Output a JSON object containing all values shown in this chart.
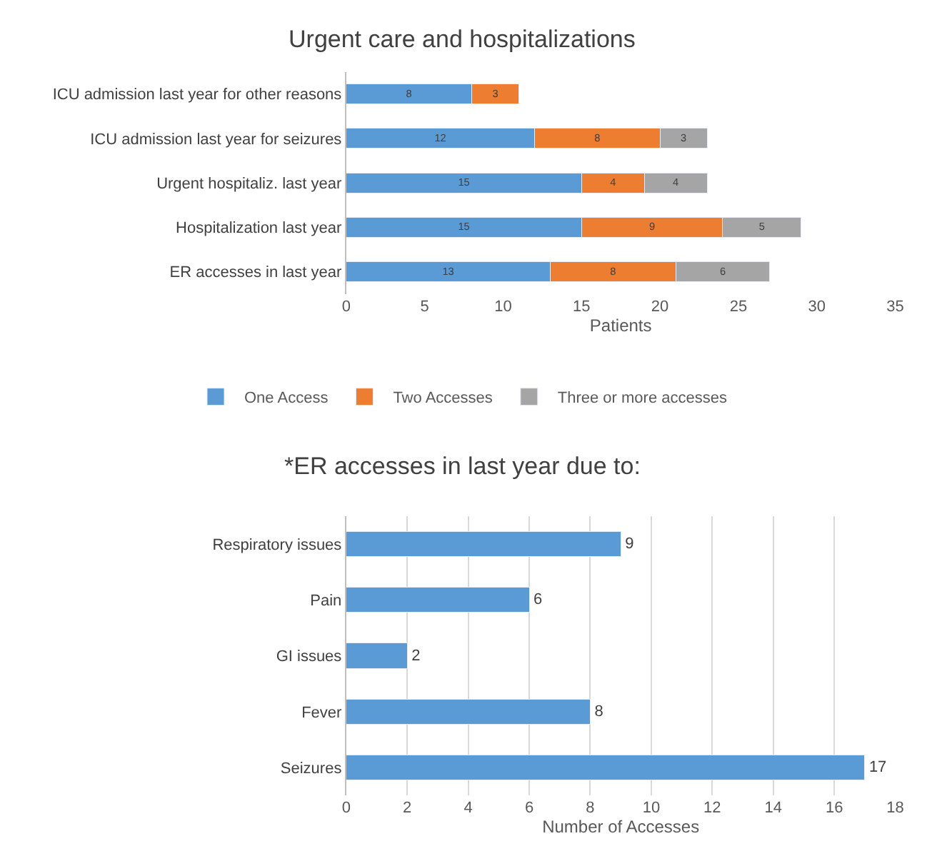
{
  "chart_data": [
    {
      "type": "bar",
      "title": "Urgent care and hospitalizations",
      "orientation": "horizontal",
      "stacked": true,
      "xlabel": "Patients",
      "categories": [
        "ICU admission last year for other reasons",
        "ICU admission last year for seizures",
        "Urgent hospitaliz. last year",
        "Hospitalization last year",
        "ER accesses in last year"
      ],
      "series": [
        {
          "name": "One Access",
          "color": "#5b9bd5",
          "values": [
            8,
            12,
            15,
            15,
            13
          ]
        },
        {
          "name": "Two Accesses",
          "color": "#ed7d31",
          "values": [
            3,
            8,
            4,
            9,
            8
          ]
        },
        {
          "name": "Three or more accesses",
          "color": "#a5a5a5",
          "values": [
            null,
            3,
            4,
            5,
            6
          ]
        }
      ],
      "xlim": [
        0,
        35
      ],
      "xticks": [
        0,
        5,
        10,
        15,
        20,
        25,
        30,
        35
      ],
      "data_labels": true,
      "grid": false,
      "legend": "bottom"
    },
    {
      "type": "bar",
      "title": "*ER accesses in last year due to:",
      "orientation": "horizontal",
      "xlabel": "Number of Accesses",
      "categories": [
        "Respiratory issues",
        "Pain",
        "GI issues",
        "Fever",
        "Seizures"
      ],
      "series": [
        {
          "color": "#5b9bd5",
          "values": [
            9,
            6,
            2,
            8,
            17
          ]
        }
      ],
      "xlim": [
        0,
        18
      ],
      "xticks": [
        0,
        2,
        4,
        6,
        8,
        10,
        12,
        14,
        16,
        18
      ],
      "data_labels": true,
      "grid": "x"
    }
  ]
}
